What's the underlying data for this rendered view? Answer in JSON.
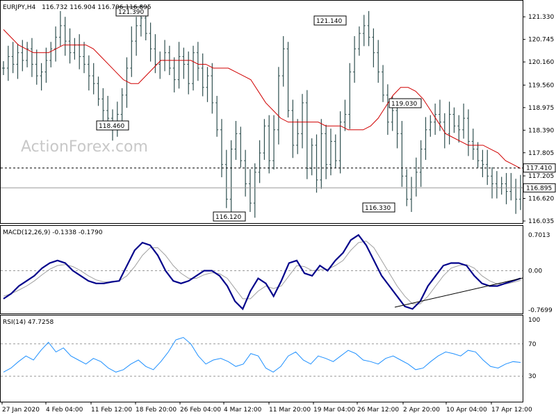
{
  "chart_data": [
    {
      "type": "candlestick",
      "title": "EURJPY,H4",
      "ohlc_text": "116.732 116.904 116.706 116.895",
      "watermark": "ActionForex.com",
      "ylim": [
        116.035,
        121.55
      ],
      "y_ticks": [
        "121.330",
        "120.745",
        "120.160",
        "119.560",
        "118.975",
        "118.390",
        "117.805",
        "117.205",
        "116.620",
        "116.035"
      ],
      "current_price": "116.895",
      "level_line": "117.410",
      "annotations": [
        {
          "label": "121.390",
          "value": 121.39
        },
        {
          "label": "118.460",
          "value": 118.46
        },
        {
          "label": "116.120",
          "value": 116.12
        },
        {
          "label": "121.140",
          "value": 121.14
        },
        {
          "label": "116.330",
          "value": 116.33
        },
        {
          "label": "119.030",
          "value": 119.03
        }
      ],
      "price_series": [
        120.0,
        120.3,
        120.1,
        120.4,
        120.2,
        120.5,
        120.1,
        119.8,
        119.9,
        120.2,
        120.5,
        120.8,
        121.1,
        120.7,
        120.4,
        120.6,
        120.3,
        120.1,
        119.8,
        119.6,
        119.2,
        118.9,
        118.7,
        118.5,
        118.8,
        119.3,
        120.0,
        120.7,
        121.1,
        121.3,
        120.9,
        120.5,
        120.1,
        120.2,
        120.4,
        120.0,
        119.7,
        120.3,
        120.1,
        119.6,
        120.4,
        120.0,
        119.5,
        119.8,
        119.1,
        118.4,
        117.5,
        116.6,
        117.9,
        118.3,
        117.6,
        117.0,
        116.5,
        117.3,
        117.8,
        118.5,
        117.6,
        118.4,
        119.8,
        120.5,
        118.9,
        118.0,
        118.3,
        119.1,
        117.4,
        118.0,
        117.1,
        118.3,
        117.5,
        118.1,
        117.6,
        118.6,
        118.8,
        119.9,
        120.5,
        120.9,
        121.1,
        120.8,
        120.4,
        119.9,
        119.3,
        118.6,
        118.9,
        118.3,
        117.2,
        116.6,
        116.9,
        117.3,
        117.9,
        118.4,
        118.6,
        118.8,
        118.6,
        118.3,
        118.8,
        118.5,
        118.4,
        118.7,
        118.1,
        117.9,
        117.6,
        117.5,
        117.2,
        117.0,
        116.9,
        117.0,
        116.8,
        116.9,
        116.6,
        116.9
      ],
      "ma_series": [
        121.0,
        120.8,
        120.6,
        120.5,
        120.4,
        120.4,
        120.4,
        120.5,
        120.6,
        120.6,
        120.6,
        120.6,
        120.5,
        120.3,
        120.1,
        119.9,
        119.7,
        119.6,
        119.6,
        119.8,
        120.0,
        120.2,
        120.2,
        120.2,
        120.2,
        120.2,
        120.1,
        120.1,
        120.0,
        120.0,
        120.0,
        119.9,
        119.8,
        119.7,
        119.4,
        119.1,
        118.9,
        118.7,
        118.6,
        118.6,
        118.6,
        118.6,
        118.6,
        118.5,
        118.5,
        118.5,
        118.4,
        118.4,
        118.4,
        118.5,
        118.7,
        119.0,
        119.3,
        119.5,
        119.5,
        119.4,
        119.2,
        118.9,
        118.6,
        118.3,
        118.2,
        118.1,
        118.0,
        118.0,
        118.0,
        117.9,
        117.8,
        117.6,
        117.5,
        117.4
      ],
      "series_names": []
    },
    {
      "type": "macd",
      "title": "MACD(12,26,9) -0.1338 -0.1790",
      "y_ticks": [
        "0.7013",
        "0.00",
        "-0.7699"
      ],
      "macd": [
        -0.55,
        -0.45,
        -0.3,
        -0.2,
        -0.1,
        0.05,
        0.15,
        0.2,
        0.15,
        0.0,
        -0.1,
        -0.2,
        -0.25,
        -0.25,
        -0.22,
        -0.2,
        0.1,
        0.4,
        0.55,
        0.5,
        0.3,
        0.0,
        -0.2,
        -0.25,
        -0.2,
        -0.1,
        0.0,
        0.0,
        -0.1,
        -0.3,
        -0.6,
        -0.75,
        -0.4,
        -0.15,
        -0.25,
        -0.5,
        -0.2,
        0.15,
        0.2,
        -0.05,
        -0.1,
        0.1,
        0.0,
        0.2,
        0.35,
        0.6,
        0.7,
        0.5,
        0.2,
        -0.1,
        -0.3,
        -0.5,
        -0.7,
        -0.75,
        -0.6,
        -0.3,
        -0.1,
        0.1,
        0.15,
        0.15,
        0.1,
        -0.1,
        -0.25,
        -0.3,
        -0.3,
        -0.25,
        -0.2,
        -0.15
      ],
      "signal": [
        -0.5,
        -0.45,
        -0.38,
        -0.3,
        -0.2,
        -0.08,
        0.03,
        0.1,
        0.12,
        0.08,
        0.0,
        -0.1,
        -0.18,
        -0.22,
        -0.22,
        -0.2,
        -0.1,
        0.08,
        0.3,
        0.45,
        0.45,
        0.3,
        0.1,
        -0.05,
        -0.15,
        -0.15,
        -0.08,
        -0.04,
        -0.06,
        -0.15,
        -0.35,
        -0.55,
        -0.55,
        -0.4,
        -0.3,
        -0.35,
        -0.3,
        -0.1,
        0.1,
        0.08,
        0.0,
        0.02,
        0.03,
        0.1,
        0.2,
        0.4,
        0.55,
        0.58,
        0.45,
        0.2,
        -0.05,
        -0.3,
        -0.5,
        -0.65,
        -0.65,
        -0.5,
        -0.3,
        -0.1,
        0.05,
        0.1,
        0.12,
        0.05,
        -0.1,
        -0.2,
        -0.26,
        -0.26,
        -0.23,
        -0.19
      ]
    },
    {
      "type": "rsi",
      "title": "RSI(14) 47.7258",
      "y_ticks": [
        "100",
        "70",
        "30",
        "0"
      ],
      "values": [
        35,
        40,
        48,
        55,
        50,
        62,
        72,
        60,
        65,
        55,
        50,
        45,
        52,
        48,
        40,
        35,
        38,
        45,
        50,
        42,
        38,
        48,
        60,
        75,
        78,
        70,
        55,
        45,
        50,
        52,
        48,
        42,
        45,
        58,
        55,
        40,
        35,
        42,
        55,
        60,
        50,
        45,
        55,
        52,
        48,
        55,
        62,
        58,
        50,
        48,
        45,
        52,
        55,
        50,
        45,
        38,
        40,
        48,
        55,
        60,
        58,
        55,
        62,
        60,
        50,
        42,
        40,
        45,
        48,
        47
      ]
    }
  ],
  "x_labels": [
    "27 Jan 2020",
    "4 Feb 04:00",
    "11 Feb 12:00",
    "18 Feb 20:00",
    "26 Feb 04:00",
    "4 Mar 12:00",
    "11 Mar 20:00",
    "19 Mar 04:00",
    "26 Mar 12:00",
    "2 Apr 20:00",
    "10 Apr 04:00",
    "17 Apr 12:00"
  ]
}
